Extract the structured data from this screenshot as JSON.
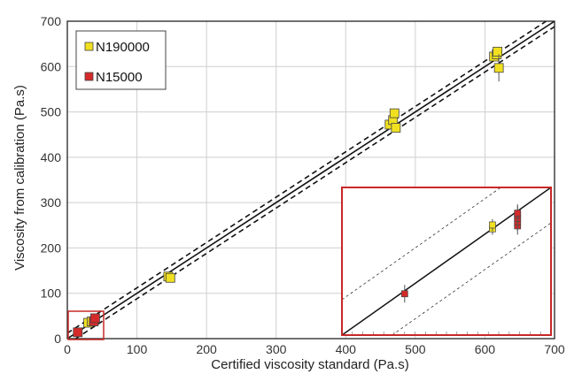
{
  "chart_data": {
    "type": "scatter",
    "xlabel": "Certified viscosity standard (Pa.s)",
    "ylabel": "Viscosity from calibration (Pa.s)",
    "xlim": [
      0,
      700
    ],
    "ylim": [
      0,
      700
    ],
    "xticks": [
      "0",
      "100",
      "200",
      "300",
      "400",
      "500",
      "600",
      "700"
    ],
    "yticks": [
      "0",
      "100",
      "200",
      "300",
      "400",
      "500",
      "600",
      "700"
    ],
    "grid": true,
    "legend": "top-left",
    "colors": {
      "N190000": "#f0e020",
      "N15000": "#d42a2a",
      "inset_border": "#c82828"
    },
    "series": [
      {
        "name": "N190000",
        "points": [
          {
            "x": 30,
            "y": 35,
            "err": 3
          },
          {
            "x": 35,
            "y": 38,
            "err": 3
          },
          {
            "x": 145,
            "y": 137,
            "err": 4
          },
          {
            "x": 148,
            "y": 134,
            "err": 4
          },
          {
            "x": 463,
            "y": 472,
            "err": 8
          },
          {
            "x": 468,
            "y": 482,
            "err": 8
          },
          {
            "x": 470,
            "y": 497,
            "err": 6
          },
          {
            "x": 472,
            "y": 465,
            "err": 6
          },
          {
            "x": 613,
            "y": 622,
            "err": 8
          },
          {
            "x": 617,
            "y": 627,
            "err": 8
          },
          {
            "x": 618,
            "y": 633,
            "err": 8
          },
          {
            "x": 620,
            "y": 597,
            "err": 30
          }
        ]
      },
      {
        "name": "N15000",
        "points": [
          {
            "x": 15,
            "y": 14,
            "err": 2
          },
          {
            "x": 38,
            "y": 38,
            "err": 3
          },
          {
            "x": 40,
            "y": 45,
            "err": 3
          }
        ]
      }
    ],
    "reference_lines": {
      "identity": true,
      "band_offset": 12
    },
    "inset": {
      "xlim": [
        0,
        50
      ],
      "ylim": [
        0,
        50
      ],
      "points": [
        {
          "series": "N15000",
          "x": 15,
          "y": 14,
          "err": 3
        },
        {
          "series": "N190000",
          "x": 36,
          "y": 36,
          "err": 2
        },
        {
          "series": "N190000",
          "x": 36,
          "y": 37.3,
          "err": 2
        },
        {
          "series": "N15000",
          "x": 42,
          "y": 37,
          "err": 3
        },
        {
          "series": "N15000",
          "x": 42,
          "y": 38.3,
          "err": 3
        },
        {
          "series": "N15000",
          "x": 42,
          "y": 39.5,
          "err": 3
        },
        {
          "series": "N15000",
          "x": 42,
          "y": 40.7,
          "err": 3
        },
        {
          "series": "N15000",
          "x": 42,
          "y": 41.3,
          "err": 3
        }
      ]
    }
  }
}
